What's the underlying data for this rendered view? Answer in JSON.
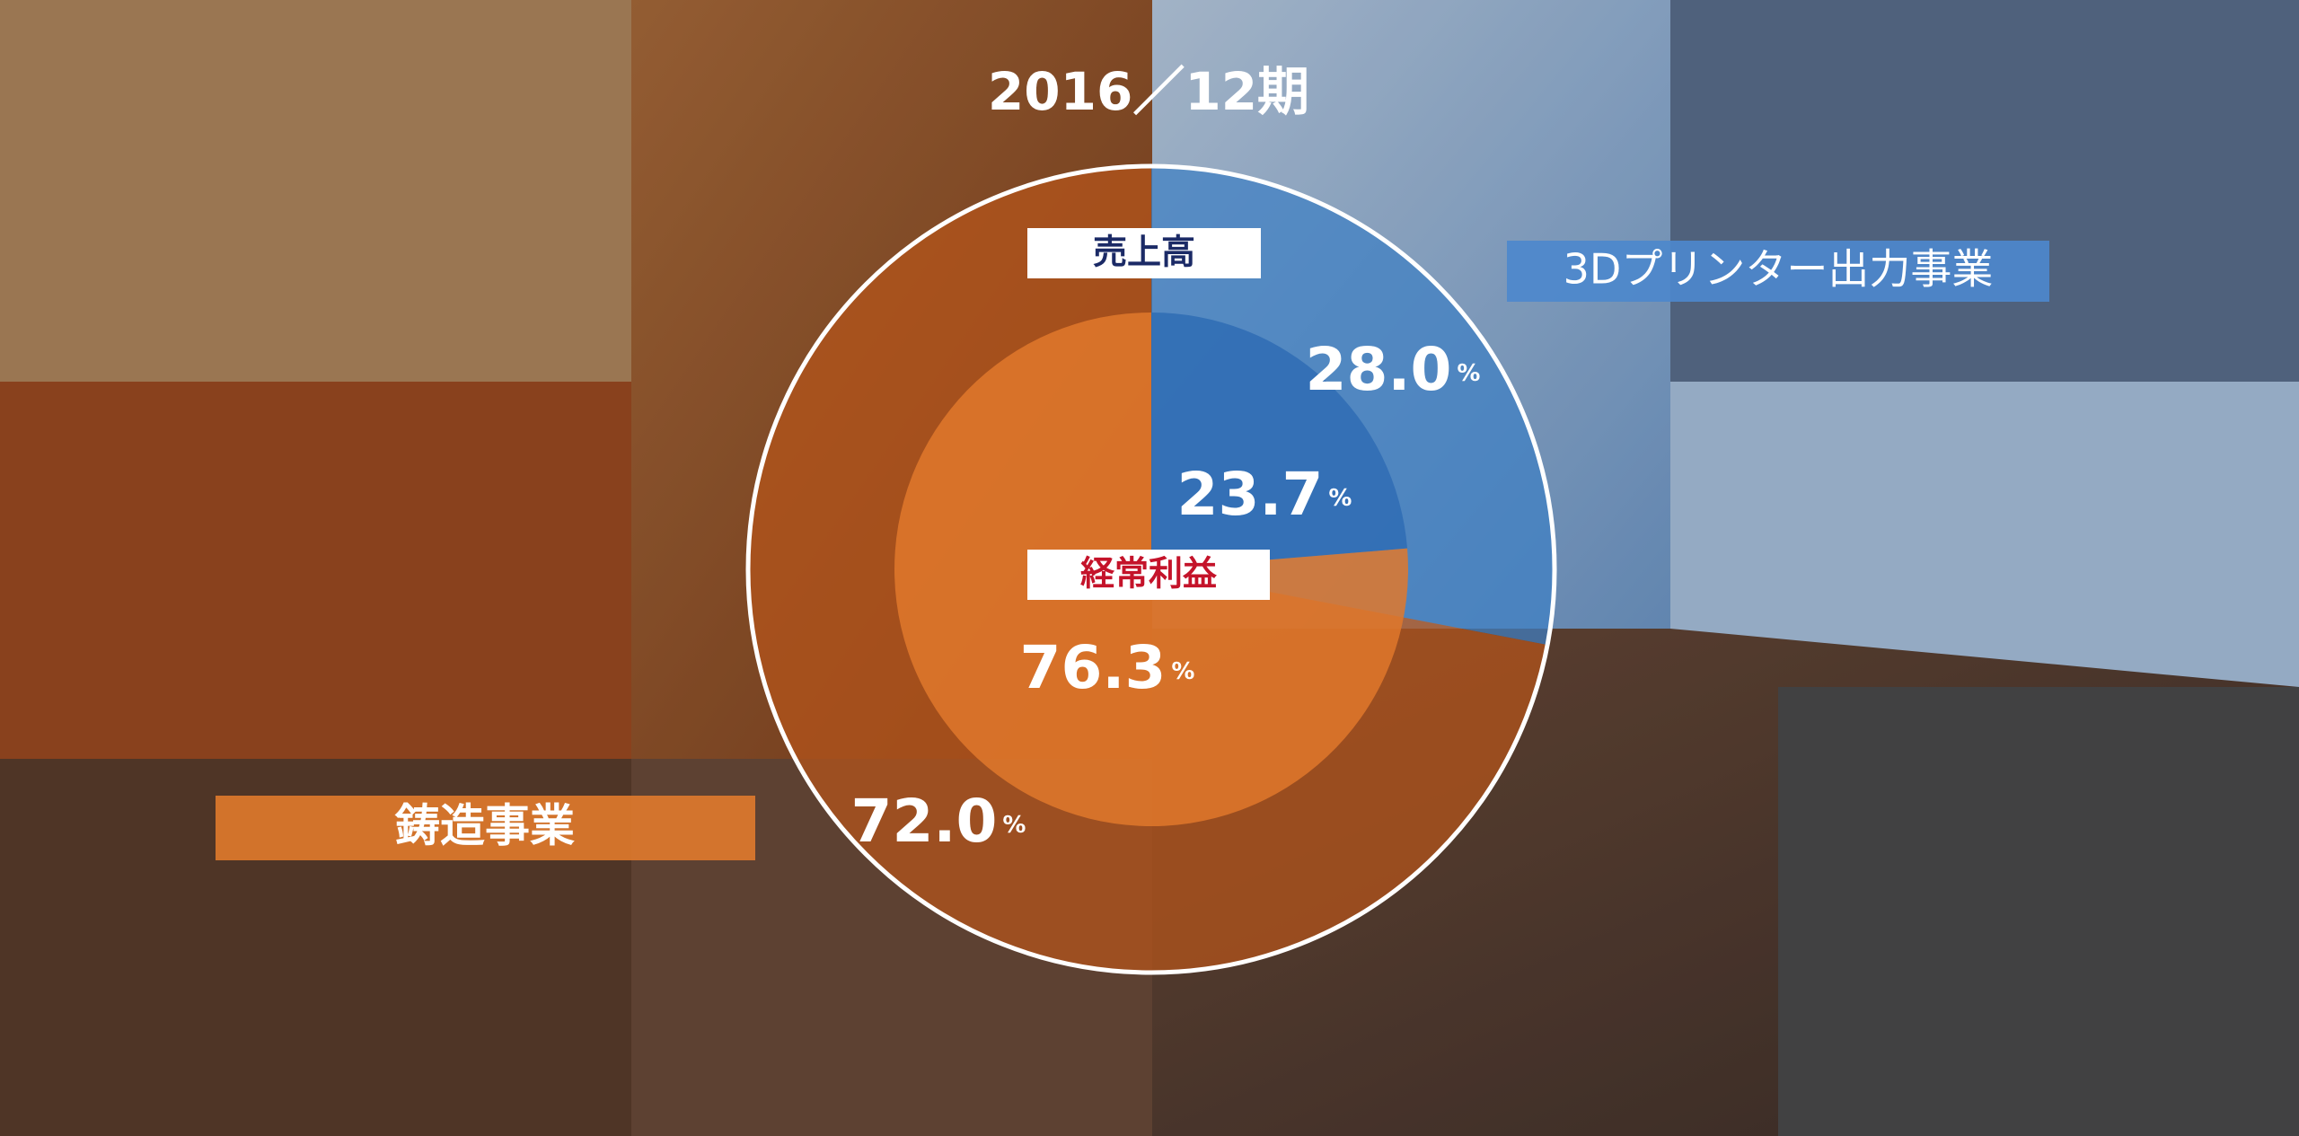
{
  "chart_data": {
    "type": "pie",
    "title": "2016／12期",
    "categories": [
      "鋳造事業",
      "3Dプリンター出力事業"
    ],
    "unit": "%",
    "series": [
      {
        "name": "売上高",
        "values": [
          72.0,
          28.0
        ],
        "value_labels": [
          "72.0",
          "28.0"
        ],
        "colors": [
          "#b5551a",
          "#3f7fc4"
        ]
      },
      {
        "name": "経常利益",
        "values": [
          76.3,
          23.7
        ],
        "value_labels": [
          "76.3",
          "23.7"
        ],
        "colors": [
          "#e0782c",
          "#2f6cb4"
        ]
      }
    ]
  }
}
